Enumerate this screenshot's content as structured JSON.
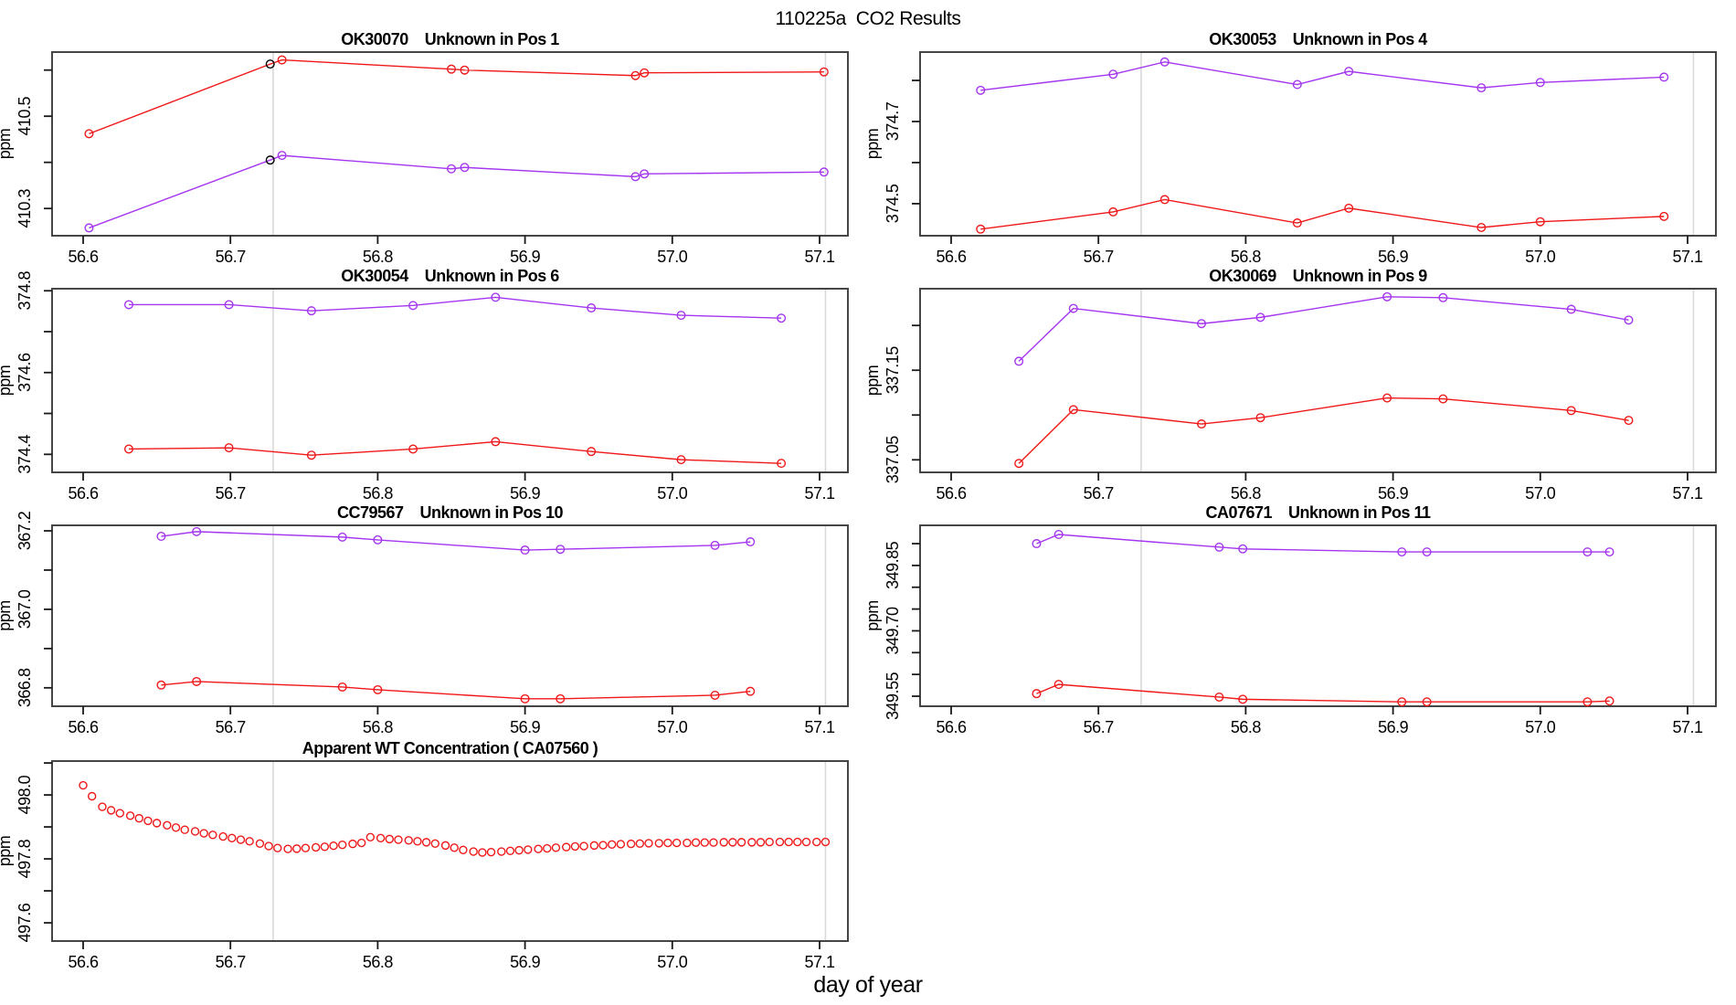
{
  "main_title": "110225a  CO2 Results",
  "y_axis_label": "ppm",
  "x_axis": {
    "label": "day of year",
    "ticks": [
      {
        "v": 56.6,
        "label": "56.6"
      },
      {
        "v": 56.7,
        "label": "56.7"
      },
      {
        "v": 56.8,
        "label": "56.8"
      },
      {
        "v": 56.9,
        "label": "56.9"
      },
      {
        "v": 57.0,
        "label": "57.0"
      },
      {
        "v": 57.1,
        "label": "57.1"
      }
    ],
    "gridlines": [
      56.729,
      57.104
    ]
  },
  "colors": {
    "red": "#f01818",
    "purple": "#a435f0",
    "black": "#000000",
    "grid": "#d9d9d9",
    "frame": "#454545",
    "tick": "#1a1a1a",
    "text": "#000000",
    "background": "#ffffff"
  },
  "chart_data": [
    {
      "id": "OK30070",
      "title": "OK30070    Unknown in Pos 1",
      "type": "line",
      "row": 0,
      "col": 0,
      "ylabel": "ppm",
      "ylim": [
        410.241,
        410.639
      ],
      "yticks": [
        {
          "v": 410.3,
          "label": "410.3"
        },
        {
          "v": 410.4,
          "label": null
        },
        {
          "v": 410.5,
          "label": "410.5"
        },
        {
          "v": 410.6,
          "label": null
        }
      ],
      "x": [
        56.604,
        56.727,
        56.735,
        56.85,
        56.859,
        56.975,
        56.981,
        57.103
      ],
      "series": [
        {
          "name": "red-trace",
          "color": "red",
          "y": [
            410.462,
            410.613,
            410.622,
            410.602,
            410.6,
            410.588,
            410.594,
            410.596
          ],
          "point_colors": {
            "1": "black"
          }
        },
        {
          "name": "purple-trace",
          "color": "purple",
          "y": [
            410.258,
            410.405,
            410.415,
            410.386,
            410.389,
            410.369,
            410.375,
            410.379
          ],
          "point_colors": {
            "1": "black"
          }
        }
      ]
    },
    {
      "id": "OK30053",
      "title": "OK30053    Unknown in Pos 4",
      "type": "line",
      "row": 0,
      "col": 1,
      "ylabel": "ppm",
      "ylim": [
        374.422,
        374.869
      ],
      "yticks": [
        {
          "v": 374.5,
          "label": "374.5"
        },
        {
          "v": 374.6,
          "label": null
        },
        {
          "v": 374.7,
          "label": "374.7"
        },
        {
          "v": 374.8,
          "label": null
        }
      ],
      "x": [
        56.62,
        56.71,
        56.745,
        56.835,
        56.87,
        56.96,
        57.0,
        57.084
      ],
      "series": [
        {
          "name": "purple-trace",
          "color": "purple",
          "y": [
            374.776,
            374.815,
            374.845,
            374.79,
            374.822,
            374.782,
            374.795,
            374.808
          ]
        },
        {
          "name": "red-trace",
          "color": "red",
          "y": [
            374.438,
            374.48,
            374.51,
            374.453,
            374.489,
            374.442,
            374.456,
            374.469
          ]
        }
      ]
    },
    {
      "id": "OK30054",
      "title": "OK30054    Unknown in Pos 6",
      "type": "line",
      "row": 1,
      "col": 0,
      "ylabel": "ppm",
      "ylim": [
        374.356,
        374.805
      ],
      "yticks": [
        {
          "v": 374.4,
          "label": "374.4"
        },
        {
          "v": 374.5,
          "label": null
        },
        {
          "v": 374.6,
          "label": "374.6"
        },
        {
          "v": 374.7,
          "label": null
        },
        {
          "v": 374.8,
          "label": "374.8"
        }
      ],
      "x": [
        56.631,
        56.699,
        56.755,
        56.824,
        56.88,
        56.945,
        57.006,
        57.074
      ],
      "series": [
        {
          "name": "purple-trace",
          "color": "purple",
          "y": [
            374.766,
            374.766,
            374.751,
            374.764,
            374.784,
            374.758,
            374.74,
            374.733
          ]
        },
        {
          "name": "red-trace",
          "color": "red",
          "y": [
            374.413,
            374.416,
            374.398,
            374.413,
            374.431,
            374.407,
            374.387,
            374.378
          ]
        }
      ]
    },
    {
      "id": "OK30069",
      "title": "OK30069    Unknown in Pos 9",
      "type": "line",
      "row": 1,
      "col": 1,
      "ylabel": "ppm",
      "ylim": [
        337.036,
        337.241
      ],
      "yticks": [
        {
          "v": 337.05,
          "label": "337.05"
        },
        {
          "v": 337.1,
          "label": null
        },
        {
          "v": 337.15,
          "label": "337.15"
        },
        {
          "v": 337.2,
          "label": null
        }
      ],
      "x": [
        56.646,
        56.683,
        56.77,
        56.81,
        56.896,
        56.934,
        57.021,
        57.06
      ],
      "series": [
        {
          "name": "purple-trace",
          "color": "purple",
          "y": [
            337.16,
            337.219,
            337.202,
            337.209,
            337.232,
            337.231,
            337.218,
            337.206
          ]
        },
        {
          "name": "red-trace",
          "color": "red",
          "y": [
            337.046,
            337.106,
            337.09,
            337.097,
            337.119,
            337.118,
            337.105,
            337.094
          ]
        }
      ]
    },
    {
      "id": "CC79567",
      "title": "CC79567    Unknown in Pos 10",
      "type": "line",
      "row": 2,
      "col": 0,
      "ylabel": "ppm",
      "ylim": [
        366.753,
        367.214
      ],
      "yticks": [
        {
          "v": 366.8,
          "label": "366.8"
        },
        {
          "v": 366.9,
          "label": null
        },
        {
          "v": 367.0,
          "label": "367.0"
        },
        {
          "v": 367.1,
          "label": null
        },
        {
          "v": 367.2,
          "label": "367.2"
        }
      ],
      "x": [
        56.653,
        56.677,
        56.776,
        56.8,
        56.9,
        56.924,
        57.029,
        57.053
      ],
      "series": [
        {
          "name": "purple-trace",
          "color": "purple",
          "y": [
            367.186,
            367.198,
            367.184,
            367.177,
            367.151,
            367.153,
            367.163,
            367.172
          ]
        },
        {
          "name": "red-trace",
          "color": "red",
          "y": [
            366.807,
            366.816,
            366.802,
            366.795,
            366.772,
            366.772,
            366.781,
            366.791
          ]
        }
      ]
    },
    {
      "id": "CA07671",
      "title": "CA07671    Unknown in Pos 11",
      "type": "line",
      "row": 2,
      "col": 1,
      "ylabel": "ppm",
      "ylim": [
        349.527,
        349.942
      ],
      "yticks": [
        {
          "v": 349.55,
          "label": "349.55"
        },
        {
          "v": 349.6,
          "label": null
        },
        {
          "v": 349.65,
          "label": null
        },
        {
          "v": 349.7,
          "label": "349.70"
        },
        {
          "v": 349.75,
          "label": null
        },
        {
          "v": 349.8,
          "label": null
        },
        {
          "v": 349.85,
          "label": "349.85"
        },
        {
          "v": 349.9,
          "label": null
        }
      ],
      "x": [
        56.658,
        56.673,
        56.782,
        56.798,
        56.906,
        56.923,
        57.032,
        57.047
      ],
      "series": [
        {
          "name": "purple-trace",
          "color": "purple",
          "y": [
            349.9,
            349.921,
            349.892,
            349.888,
            349.881,
            349.881,
            349.881,
            349.881
          ]
        },
        {
          "name": "red-trace",
          "color": "red",
          "y": [
            349.556,
            349.577,
            349.548,
            349.543,
            349.537,
            349.537,
            349.537,
            349.539
          ]
        }
      ]
    },
    {
      "id": "CA07560",
      "title": "Apparent WT Concentration ( CA07560 )",
      "type": "scatter",
      "row": 3,
      "col": 0,
      "ylabel": "ppm",
      "ylim": [
        497.543,
        498.106
      ],
      "yticks": [
        {
          "v": 497.6,
          "label": "497.6"
        },
        {
          "v": 497.7,
          "label": null
        },
        {
          "v": 497.8,
          "label": "497.8"
        },
        {
          "v": 497.9,
          "label": null
        },
        {
          "v": 498.0,
          "label": "498.0"
        },
        {
          "v": 498.1,
          "label": null
        }
      ],
      "x": [
        56.6,
        56.606,
        56.613,
        56.619,
        56.625,
        56.632,
        56.638,
        56.644,
        56.65,
        56.657,
        56.663,
        56.669,
        56.676,
        56.682,
        56.688,
        56.695,
        56.701,
        56.707,
        56.713,
        56.72,
        56.726,
        56.732,
        56.739,
        56.745,
        56.751,
        56.758,
        56.764,
        56.77,
        56.776,
        56.783,
        56.789,
        56.795,
        56.802,
        56.808,
        56.814,
        56.821,
        56.827,
        56.833,
        56.839,
        56.846,
        56.852,
        56.858,
        56.865,
        56.871,
        56.877,
        56.884,
        56.89,
        56.896,
        56.902,
        56.909,
        56.915,
        56.921,
        56.928,
        56.934,
        56.94,
        56.947,
        56.953,
        56.959,
        56.965,
        56.972,
        56.978,
        56.984,
        56.991,
        56.997,
        57.003,
        57.01,
        57.016,
        57.022,
        57.028,
        57.035,
        57.041,
        57.047,
        57.054,
        57.06,
        57.066,
        57.073,
        57.079,
        57.085,
        57.091,
        57.098,
        57.104
      ],
      "series": [
        {
          "name": "red-scatter",
          "color": "red",
          "y": [
            498.03,
            497.996,
            497.963,
            497.952,
            497.943,
            497.935,
            497.927,
            497.919,
            497.912,
            497.905,
            497.898,
            497.891,
            497.886,
            497.88,
            497.875,
            497.87,
            497.865,
            497.86,
            497.855,
            497.848,
            497.84,
            497.834,
            497.831,
            497.832,
            497.834,
            497.836,
            497.838,
            497.841,
            497.844,
            497.847,
            497.85,
            497.868,
            497.865,
            497.862,
            497.86,
            497.858,
            497.855,
            497.852,
            497.848,
            497.842,
            497.835,
            497.828,
            497.823,
            497.82,
            497.821,
            497.823,
            497.825,
            497.827,
            497.829,
            497.831,
            497.833,
            497.835,
            497.837,
            497.839,
            497.84,
            497.842,
            497.843,
            497.845,
            497.846,
            497.847,
            497.848,
            497.849,
            497.849,
            497.85,
            497.85,
            497.85,
            497.851,
            497.851,
            497.851,
            497.852,
            497.852,
            497.852,
            497.852,
            497.852,
            497.853,
            497.853,
            497.853,
            497.853,
            497.853,
            497.853,
            497.853
          ]
        }
      ]
    }
  ]
}
